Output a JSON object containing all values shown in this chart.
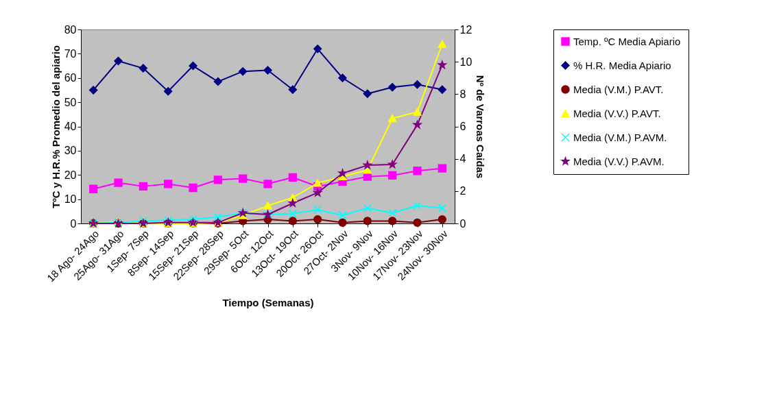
{
  "chart_data": {
    "type": "line",
    "xlabel": "Tiempo (Semanas)",
    "ylabel": "TºC y H.R.% Promedio del apiario",
    "y2label": "Nº de Varroas Caidas",
    "categories": [
      "18 Ago- 24Ago",
      "25Ago- 31Ago",
      "1Sep- 7Sep",
      "8Sep- 14Sep",
      "15Sep- 21Sep",
      "22Sep- 28Sep",
      "29Sep- 5Oct",
      "6Oct- 12Oct",
      "13Oct- 19Oct",
      "20Oct- 26Oct",
      "27Oct- 2Nov",
      "3Nov- 9Nov",
      "10Nov- 16Nov",
      "17Nov- 23Nov",
      "24Nov- 30Nov"
    ],
    "series": [
      {
        "name": "Temp. ºC Media Apiario",
        "color": "#ff00ff",
        "marker": "square",
        "values": [
          14.2,
          16.8,
          15.3,
          16.3,
          14.7,
          18,
          18.5,
          16.3,
          19,
          15.2,
          17.3,
          19.3,
          19.8,
          21.7,
          22.7
        ]
      },
      {
        "name": "% H.R. Media Apiario",
        "color": "#000080",
        "marker": "diamond",
        "values": [
          55,
          67,
          64,
          54.5,
          65,
          58.5,
          62.7,
          63.2,
          55.2,
          72,
          60,
          53.5,
          56.2,
          57.3,
          55.2
        ]
      },
      {
        "name": "Media (V.M.) P.AVT.",
        "color": "#800000",
        "marker": "circle",
        "axis": "y2",
        "values": [
          0,
          0,
          0,
          0,
          0,
          0,
          0.15,
          0.25,
          0.15,
          0.25,
          0.05,
          0.15,
          0.15,
          0.05,
          0.25
        ]
      },
      {
        "name": "Media (V.V.) P.AVT.",
        "color": "#ffff00",
        "marker": "triangle",
        "axis": "y2",
        "values": [
          0,
          0.1,
          0,
          0,
          0,
          0.05,
          0.5,
          1.1,
          1.6,
          2.5,
          2.9,
          3.3,
          6.5,
          6.9,
          11.1
        ]
      },
      {
        "name": "Media (V.M.) P.AVM.",
        "color": "#00ffff",
        "marker": "cross",
        "axis": "y2",
        "values": [
          0,
          0.05,
          0.15,
          0.2,
          0.25,
          0.4,
          0.65,
          0.55,
          0.6,
          0.85,
          0.5,
          0.95,
          0.65,
          1.1,
          0.95
        ]
      },
      {
        "name": "Media (V.V.) P.AVM.",
        "color": "#800080",
        "marker": "star",
        "axis": "y2",
        "values": [
          0,
          0,
          0,
          0.05,
          0.05,
          0.05,
          0.65,
          0.55,
          1.25,
          1.9,
          3.1,
          3.6,
          3.65,
          6.1,
          9.8
        ]
      }
    ],
    "ylim": [
      0,
      80
    ],
    "yticks": [
      0,
      10,
      20,
      30,
      40,
      50,
      60,
      70,
      80
    ],
    "y2lim": [
      0,
      12
    ],
    "y2ticks": [
      0,
      2,
      4,
      6,
      8,
      10,
      12
    ],
    "legend": "right",
    "grid": false,
    "line_style": "solid"
  }
}
